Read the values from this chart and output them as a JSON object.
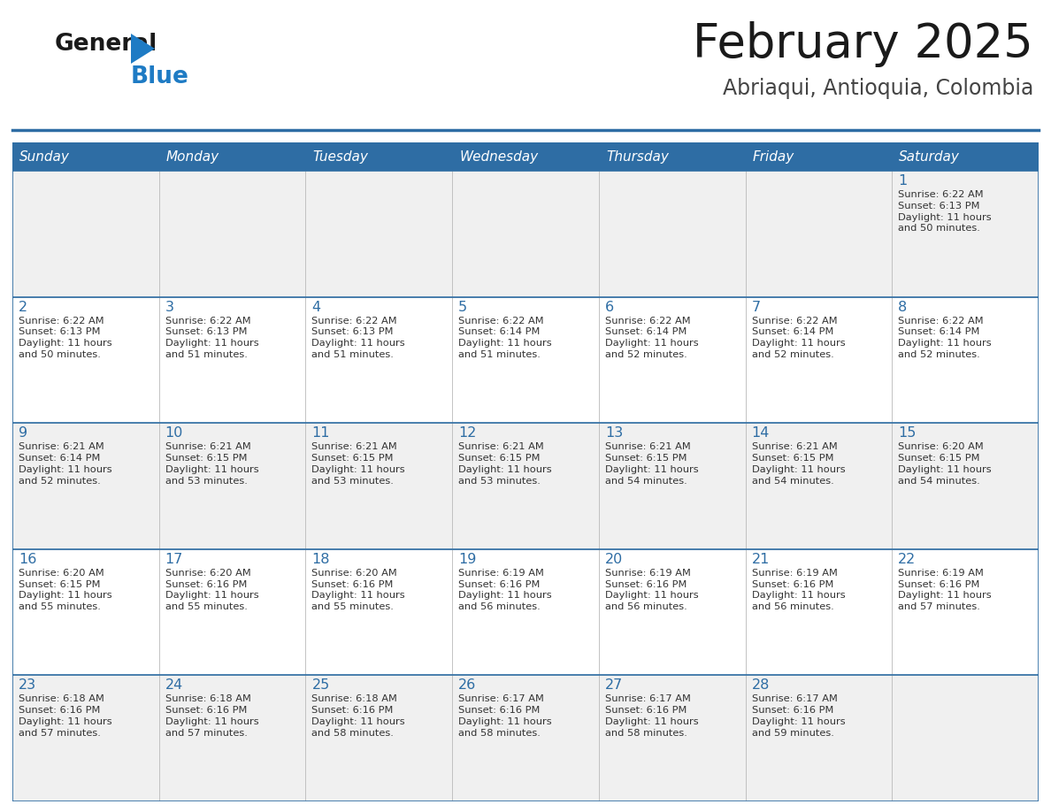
{
  "title": "February 2025",
  "subtitle": "Abriaqui, Antioquia, Colombia",
  "header_bg": "#2E6DA4",
  "header_text_color": "#FFFFFF",
  "day_names": [
    "Sunday",
    "Monday",
    "Tuesday",
    "Wednesday",
    "Thursday",
    "Friday",
    "Saturday"
  ],
  "cell_bg_light": "#F0F0F0",
  "cell_bg_white": "#FFFFFF",
  "cell_text_color": "#333333",
  "day_num_color": "#2E6DA4",
  "border_color": "#2E6DA4",
  "cell_border_color": "#BBBBBB",
  "title_color": "#1a1a1a",
  "subtitle_color": "#444444",
  "logo_general_color": "#1a1a1a",
  "logo_blue_color": "#1E7BC4",
  "weeks": [
    [
      {
        "day": null,
        "data": null
      },
      {
        "day": null,
        "data": null
      },
      {
        "day": null,
        "data": null
      },
      {
        "day": null,
        "data": null
      },
      {
        "day": null,
        "data": null
      },
      {
        "day": null,
        "data": null
      },
      {
        "day": 1,
        "data": "Sunrise: 6:22 AM\nSunset: 6:13 PM\nDaylight: 11 hours\nand 50 minutes."
      }
    ],
    [
      {
        "day": 2,
        "data": "Sunrise: 6:22 AM\nSunset: 6:13 PM\nDaylight: 11 hours\nand 50 minutes."
      },
      {
        "day": 3,
        "data": "Sunrise: 6:22 AM\nSunset: 6:13 PM\nDaylight: 11 hours\nand 51 minutes."
      },
      {
        "day": 4,
        "data": "Sunrise: 6:22 AM\nSunset: 6:13 PM\nDaylight: 11 hours\nand 51 minutes."
      },
      {
        "day": 5,
        "data": "Sunrise: 6:22 AM\nSunset: 6:14 PM\nDaylight: 11 hours\nand 51 minutes."
      },
      {
        "day": 6,
        "data": "Sunrise: 6:22 AM\nSunset: 6:14 PM\nDaylight: 11 hours\nand 52 minutes."
      },
      {
        "day": 7,
        "data": "Sunrise: 6:22 AM\nSunset: 6:14 PM\nDaylight: 11 hours\nand 52 minutes."
      },
      {
        "day": 8,
        "data": "Sunrise: 6:22 AM\nSunset: 6:14 PM\nDaylight: 11 hours\nand 52 minutes."
      }
    ],
    [
      {
        "day": 9,
        "data": "Sunrise: 6:21 AM\nSunset: 6:14 PM\nDaylight: 11 hours\nand 52 minutes."
      },
      {
        "day": 10,
        "data": "Sunrise: 6:21 AM\nSunset: 6:15 PM\nDaylight: 11 hours\nand 53 minutes."
      },
      {
        "day": 11,
        "data": "Sunrise: 6:21 AM\nSunset: 6:15 PM\nDaylight: 11 hours\nand 53 minutes."
      },
      {
        "day": 12,
        "data": "Sunrise: 6:21 AM\nSunset: 6:15 PM\nDaylight: 11 hours\nand 53 minutes."
      },
      {
        "day": 13,
        "data": "Sunrise: 6:21 AM\nSunset: 6:15 PM\nDaylight: 11 hours\nand 54 minutes."
      },
      {
        "day": 14,
        "data": "Sunrise: 6:21 AM\nSunset: 6:15 PM\nDaylight: 11 hours\nand 54 minutes."
      },
      {
        "day": 15,
        "data": "Sunrise: 6:20 AM\nSunset: 6:15 PM\nDaylight: 11 hours\nand 54 minutes."
      }
    ],
    [
      {
        "day": 16,
        "data": "Sunrise: 6:20 AM\nSunset: 6:15 PM\nDaylight: 11 hours\nand 55 minutes."
      },
      {
        "day": 17,
        "data": "Sunrise: 6:20 AM\nSunset: 6:16 PM\nDaylight: 11 hours\nand 55 minutes."
      },
      {
        "day": 18,
        "data": "Sunrise: 6:20 AM\nSunset: 6:16 PM\nDaylight: 11 hours\nand 55 minutes."
      },
      {
        "day": 19,
        "data": "Sunrise: 6:19 AM\nSunset: 6:16 PM\nDaylight: 11 hours\nand 56 minutes."
      },
      {
        "day": 20,
        "data": "Sunrise: 6:19 AM\nSunset: 6:16 PM\nDaylight: 11 hours\nand 56 minutes."
      },
      {
        "day": 21,
        "data": "Sunrise: 6:19 AM\nSunset: 6:16 PM\nDaylight: 11 hours\nand 56 minutes."
      },
      {
        "day": 22,
        "data": "Sunrise: 6:19 AM\nSunset: 6:16 PM\nDaylight: 11 hours\nand 57 minutes."
      }
    ],
    [
      {
        "day": 23,
        "data": "Sunrise: 6:18 AM\nSunset: 6:16 PM\nDaylight: 11 hours\nand 57 minutes."
      },
      {
        "day": 24,
        "data": "Sunrise: 6:18 AM\nSunset: 6:16 PM\nDaylight: 11 hours\nand 57 minutes."
      },
      {
        "day": 25,
        "data": "Sunrise: 6:18 AM\nSunset: 6:16 PM\nDaylight: 11 hours\nand 58 minutes."
      },
      {
        "day": 26,
        "data": "Sunrise: 6:17 AM\nSunset: 6:16 PM\nDaylight: 11 hours\nand 58 minutes."
      },
      {
        "day": 27,
        "data": "Sunrise: 6:17 AM\nSunset: 6:16 PM\nDaylight: 11 hours\nand 58 minutes."
      },
      {
        "day": 28,
        "data": "Sunrise: 6:17 AM\nSunset: 6:16 PM\nDaylight: 11 hours\nand 59 minutes."
      },
      {
        "day": null,
        "data": null
      }
    ]
  ]
}
